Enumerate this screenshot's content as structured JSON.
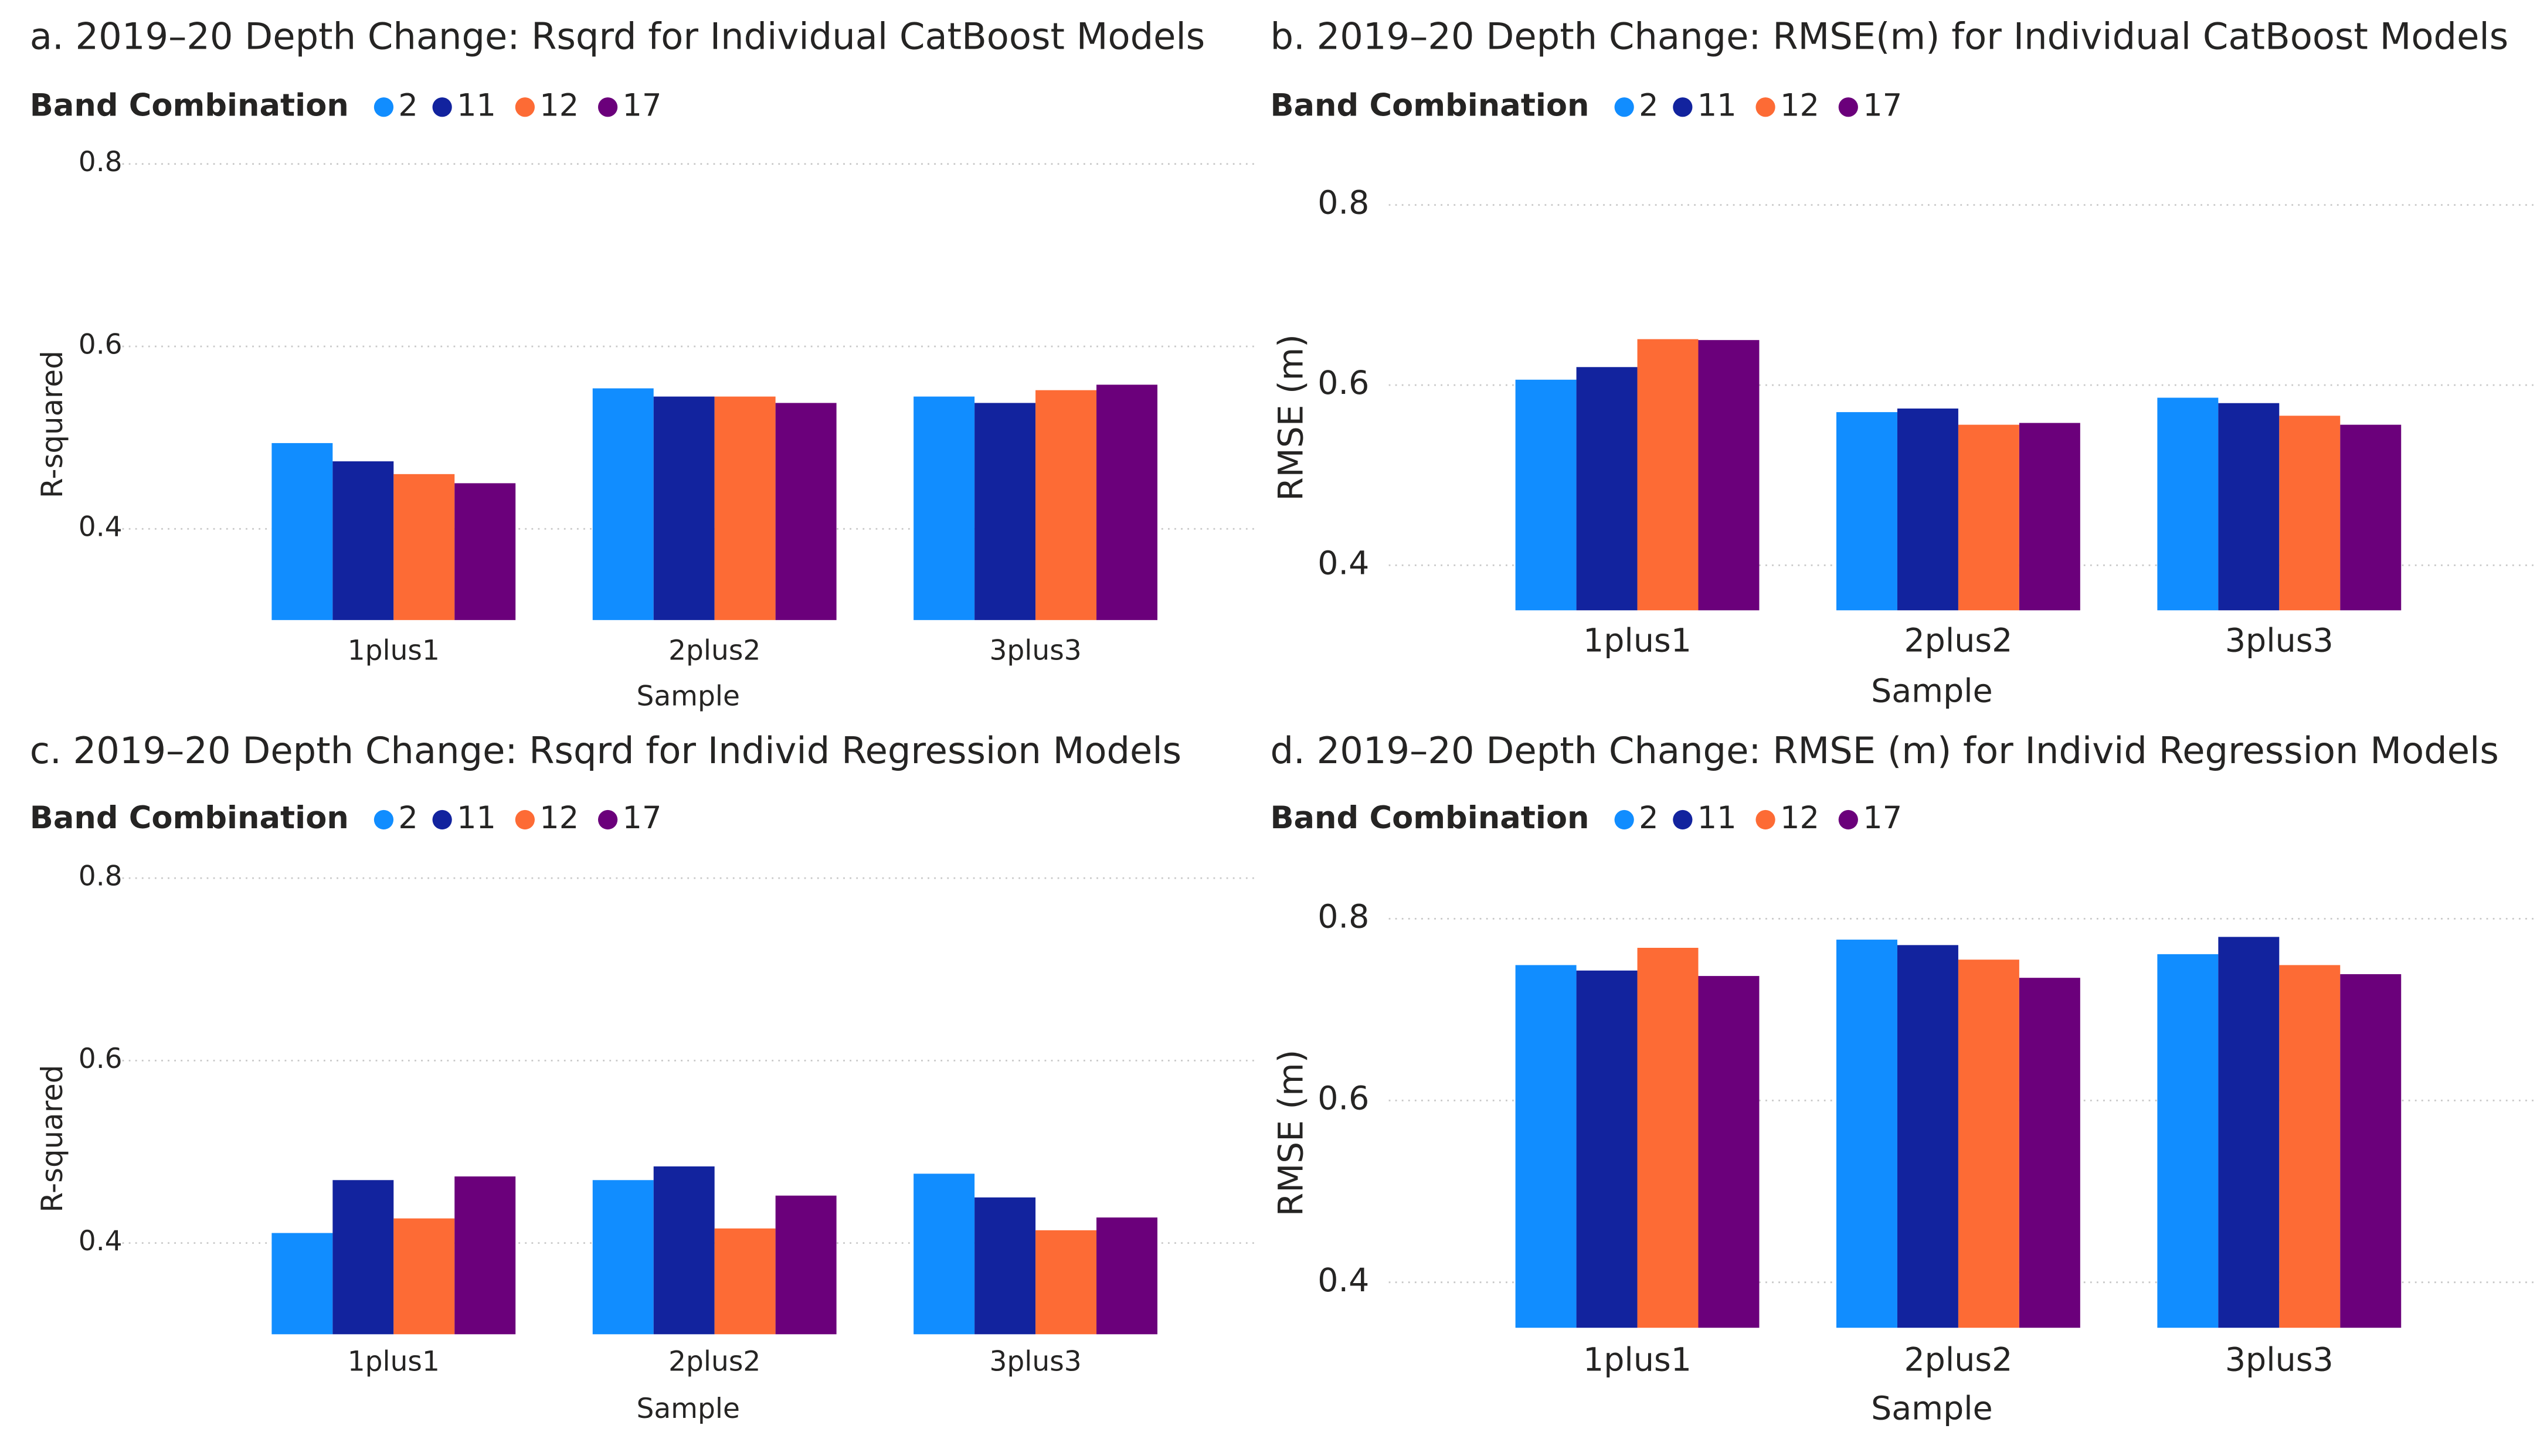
{
  "chart_data": [
    {
      "type": "bar",
      "title": "a. 2019–20 Depth Change: Rsqrd for Individual CatBoost Models",
      "legend_title": "Band Combination",
      "x_label": "Sample",
      "y_label": "R-squared",
      "categories": [
        "1plus1",
        "2plus2",
        "3plus3"
      ],
      "series": [
        {
          "name": "2",
          "color": "#118dff",
          "values": [
            0.494,
            0.554,
            0.545
          ]
        },
        {
          "name": "11",
          "color": "#12239e",
          "values": [
            0.474,
            0.545,
            0.538
          ]
        },
        {
          "name": "12",
          "color": "#fd6b35",
          "values": [
            0.46,
            0.545,
            0.552
          ]
        },
        {
          "name": "17",
          "color": "#6b007b",
          "values": [
            0.45,
            0.538,
            0.558
          ]
        }
      ],
      "ylim": [
        0.3,
        0.8
      ],
      "yticks": [
        0.4,
        0.6,
        0.8
      ],
      "grid": true
    },
    {
      "type": "bar",
      "title": "b. 2019–20 Depth Change: RMSE(m) for Individual CatBoost Models",
      "legend_title": "Band Combination",
      "x_label": "Sample",
      "y_label": "RMSE (m)",
      "categories": [
        "1plus1",
        "2plus2",
        "3plus3"
      ],
      "series": [
        {
          "name": "2",
          "color": "#118dff",
          "values": [
            0.606,
            0.57,
            0.586
          ]
        },
        {
          "name": "11",
          "color": "#12239e",
          "values": [
            0.62,
            0.574,
            0.58
          ]
        },
        {
          "name": "12",
          "color": "#fd6b35",
          "values": [
            0.651,
            0.556,
            0.566
          ]
        },
        {
          "name": "17",
          "color": "#6b007b",
          "values": [
            0.65,
            0.558,
            0.556
          ]
        }
      ],
      "ylim": [
        0.35,
        0.85
      ],
      "yticks": [
        0.4,
        0.6,
        0.8
      ],
      "grid": true
    },
    {
      "type": "bar",
      "title": "c. 2019–20 Depth Change: Rsqrd for Individ Regression Models",
      "legend_title": "Band Combination",
      "x_label": "Sample",
      "y_label": "R-squared",
      "categories": [
        "1plus1",
        "2plus2",
        "3plus3"
      ],
      "series": [
        {
          "name": "2",
          "color": "#118dff",
          "values": [
            0.411,
            0.469,
            0.476
          ]
        },
        {
          "name": "11",
          "color": "#12239e",
          "values": [
            0.469,
            0.484,
            0.45
          ]
        },
        {
          "name": "12",
          "color": "#fd6b35",
          "values": [
            0.427,
            0.416,
            0.414
          ]
        },
        {
          "name": "17",
          "color": "#6b007b",
          "values": [
            0.473,
            0.452,
            0.428
          ]
        }
      ],
      "ylim": [
        0.3,
        0.8
      ],
      "yticks": [
        0.4,
        0.6,
        0.8
      ],
      "grid": true
    },
    {
      "type": "bar",
      "title": "d. 2019–20 Depth Change: RMSE (m) for Individ Regression Models",
      "legend_title": "Band Combination",
      "x_label": "Sample",
      "y_label": "RMSE (m)",
      "categories": [
        "1plus1",
        "2plus2",
        "3plus3"
      ],
      "series": [
        {
          "name": "2",
          "color": "#118dff",
          "values": [
            0.749,
            0.777,
            0.761
          ]
        },
        {
          "name": "11",
          "color": "#12239e",
          "values": [
            0.743,
            0.771,
            0.78
          ]
        },
        {
          "name": "12",
          "color": "#fd6b35",
          "values": [
            0.768,
            0.755,
            0.749
          ]
        },
        {
          "name": "17",
          "color": "#6b007b",
          "values": [
            0.737,
            0.735,
            0.739
          ]
        }
      ],
      "ylim": [
        0.35,
        0.85
      ],
      "yticks": [
        0.4,
        0.6,
        0.8
      ],
      "grid": true
    }
  ]
}
